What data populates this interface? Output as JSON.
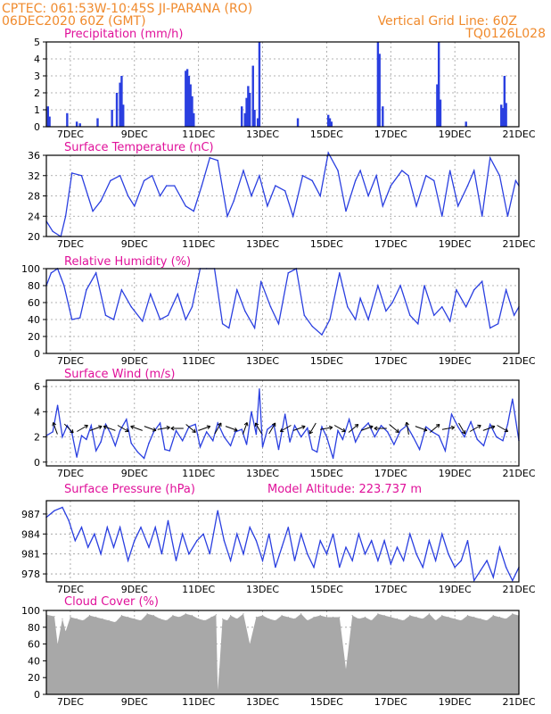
{
  "header": {
    "line1_left": "CPTEC:   061:53W-10:45S   JI-PARANA (RO)",
    "line2_left": "06DEC2020 60Z (GMT)",
    "line1_right": "Vertical Grid Line: 60Z",
    "line2_right": "TQ0126L028"
  },
  "colors": {
    "header": "#f08a2c",
    "panel_title": "#e0119a",
    "series": "#2a3fe0",
    "cloud": "#a8a8a8"
  },
  "x_ticks": [
    "7DEC",
    "9DEC",
    "11DEC",
    "13DEC",
    "15DEC",
    "17DEC",
    "19DEC",
    "21DEC"
  ],
  "chart_data": [
    {
      "type": "bar",
      "title": "Precipitation (mm/h)",
      "ylim": [
        0,
        5
      ],
      "yticks": [
        "0",
        "1",
        "2",
        "3",
        "4",
        "5"
      ],
      "x_range_days": [
        6.25,
        21
      ],
      "x": [
        6.3,
        6.35,
        6.9,
        7.2,
        7.3,
        7.85,
        8.3,
        8.45,
        8.55,
        8.6,
        8.65,
        10.6,
        10.65,
        10.7,
        10.75,
        10.8,
        10.85,
        12.35,
        12.45,
        12.5,
        12.55,
        12.6,
        12.7,
        12.75,
        12.85,
        12.9,
        14.1,
        15.05,
        15.1,
        15.15,
        16.6,
        16.65,
        16.75,
        18.45,
        18.5,
        18.55,
        19.35,
        20.45,
        20.5,
        20.55,
        20.6
      ],
      "values": [
        1.2,
        0.6,
        0.8,
        0.3,
        0.2,
        0.5,
        1.0,
        2.0,
        2.6,
        3.0,
        1.3,
        3.3,
        3.4,
        3.0,
        2.5,
        1.8,
        0.8,
        1.2,
        0.8,
        1.7,
        2.4,
        2.0,
        3.6,
        1.0,
        0.5,
        5.0,
        0.5,
        0.7,
        0.5,
        0.3,
        5.0,
        4.3,
        1.2,
        2.5,
        5.0,
        1.6,
        0.3,
        1.3,
        1.1,
        3.0,
        1.4
      ]
    },
    {
      "type": "line",
      "title": "Surface Temperature (nC)",
      "ylim": [
        20,
        36
      ],
      "yticks": [
        "20",
        "24",
        "28",
        "32",
        "36"
      ],
      "x_range_days": [
        6.25,
        21
      ],
      "x": [
        6.25,
        6.45,
        6.7,
        6.85,
        7.05,
        7.35,
        7.7,
        7.95,
        8.25,
        8.55,
        8.8,
        9.0,
        9.3,
        9.55,
        9.8,
        10.0,
        10.25,
        10.6,
        10.85,
        11.1,
        11.35,
        11.6,
        11.9,
        12.1,
        12.4,
        12.65,
        12.9,
        13.15,
        13.4,
        13.7,
        13.95,
        14.25,
        14.55,
        14.8,
        15.05,
        15.35,
        15.6,
        15.9,
        16.05,
        16.3,
        16.55,
        16.75,
        17.0,
        17.35,
        17.55,
        17.8,
        18.1,
        18.35,
        18.6,
        18.85,
        19.1,
        19.4,
        19.6,
        19.85,
        20.1,
        20.4,
        20.65,
        20.9,
        21.0
      ],
      "values": [
        23,
        21,
        20,
        24,
        32.5,
        32,
        25,
        27,
        31,
        32,
        28,
        26,
        31,
        32,
        28,
        30,
        30,
        26,
        25,
        30,
        35.5,
        35,
        24,
        27,
        33,
        28,
        32,
        26,
        30,
        29,
        24,
        32,
        31,
        28,
        36.5,
        33,
        25,
        31,
        33,
        28,
        32,
        26,
        30,
        33,
        32,
        26,
        32,
        31,
        24,
        33,
        26,
        30,
        33,
        24,
        35.5,
        32,
        24,
        31,
        30
      ]
    },
    {
      "type": "line",
      "title": "Relative Humidity (%)",
      "ylim": [
        0,
        100
      ],
      "yticks": [
        "0",
        "20",
        "40",
        "60",
        "80",
        "100"
      ],
      "x_range_days": [
        6.25,
        21
      ],
      "x": [
        6.25,
        6.4,
        6.6,
        6.8,
        7.05,
        7.3,
        7.5,
        7.8,
        8.1,
        8.35,
        8.6,
        8.9,
        9.25,
        9.5,
        9.8,
        10.05,
        10.35,
        10.6,
        10.8,
        11.05,
        11.25,
        11.5,
        11.75,
        11.95,
        12.2,
        12.45,
        12.75,
        12.95,
        13.25,
        13.5,
        13.8,
        14.05,
        14.3,
        14.55,
        14.85,
        15.1,
        15.4,
        15.65,
        15.9,
        16.05,
        16.3,
        16.6,
        16.85,
        17.05,
        17.3,
        17.6,
        17.85,
        18.05,
        18.35,
        18.6,
        18.85,
        19.05,
        19.35,
        19.6,
        19.85,
        20.1,
        20.35,
        20.6,
        20.85,
        21.0
      ],
      "values": [
        80,
        95,
        100,
        80,
        40,
        42,
        75,
        95,
        45,
        40,
        75,
        55,
        38,
        70,
        40,
        45,
        70,
        40,
        55,
        100,
        100,
        100,
        35,
        30,
        75,
        50,
        30,
        85,
        55,
        35,
        95,
        100,
        45,
        32,
        22,
        40,
        95,
        55,
        40,
        65,
        40,
        80,
        50,
        60,
        80,
        45,
        35,
        80,
        45,
        55,
        38,
        75,
        55,
        75,
        85,
        30,
        35,
        75,
        45,
        55
      ]
    },
    {
      "type": "line",
      "title": "Surface Wind (m/s)",
      "ylim": [
        -0.3,
        6.5
      ],
      "yticks": [
        "0",
        "2",
        "4",
        "6"
      ],
      "x_range_days": [
        6.25,
        21
      ],
      "x": [
        6.25,
        6.45,
        6.6,
        6.75,
        6.9,
        7.05,
        7.2,
        7.35,
        7.5,
        7.65,
        7.8,
        7.95,
        8.1,
        8.25,
        8.4,
        8.55,
        8.75,
        8.9,
        9.1,
        9.3,
        9.45,
        9.6,
        9.8,
        9.95,
        10.1,
        10.3,
        10.5,
        10.7,
        10.9,
        11.05,
        11.25,
        11.45,
        11.6,
        11.8,
        12.0,
        12.15,
        12.35,
        12.5,
        12.65,
        12.8,
        12.9,
        13.0,
        13.15,
        13.35,
        13.5,
        13.7,
        13.85,
        14.0,
        14.2,
        14.4,
        14.55,
        14.7,
        14.85,
        15.0,
        15.2,
        15.35,
        15.5,
        15.7,
        15.9,
        16.1,
        16.3,
        16.5,
        16.7,
        16.9,
        17.1,
        17.3,
        17.5,
        17.7,
        17.9,
        18.1,
        18.3,
        18.5,
        18.7,
        18.9,
        19.1,
        19.3,
        19.5,
        19.7,
        19.9,
        20.1,
        20.3,
        20.5,
        20.65,
        20.8,
        21.0
      ],
      "values": [
        2.1,
        2.4,
        4.5,
        2.0,
        2.9,
        2.3,
        0.4,
        2.1,
        1.8,
        2.9,
        0.9,
        1.6,
        3.0,
        2.3,
        1.3,
        2.5,
        3.4,
        1.5,
        0.8,
        0.3,
        1.5,
        2.4,
        3.1,
        1.0,
        0.9,
        2.5,
        1.7,
        2.8,
        3.0,
        1.2,
        2.4,
        1.7,
        3.1,
        2.0,
        1.3,
        2.4,
        2.6,
        1.4,
        4.0,
        2.2,
        5.8,
        1.2,
        2.6,
        3.0,
        1.0,
        3.8,
        1.6,
        2.9,
        2.0,
        2.7,
        1.0,
        0.8,
        2.8,
        2.0,
        0.3,
        2.5,
        1.8,
        3.4,
        1.6,
        2.6,
        3.1,
        2.0,
        2.9,
        2.4,
        1.4,
        2.5,
        2.9,
        2.0,
        1.0,
        2.8,
        2.4,
        2.1,
        0.9,
        3.8,
        2.8,
        2.0,
        3.2,
        1.8,
        1.3,
        3.0,
        2.0,
        1.7,
        3.0,
        5.0,
        1.7
      ]
    },
    {
      "type": "line",
      "title": "Surface Pressure (hPa)",
      "annotation": "Model Altitude: 223.737 m",
      "ylim": [
        976.8,
        989
      ],
      "yticks": [
        "978",
        "981",
        "984",
        "987"
      ],
      "x_range_days": [
        6.25,
        21
      ],
      "x": [
        6.25,
        6.5,
        6.75,
        6.95,
        7.15,
        7.35,
        7.55,
        7.75,
        7.95,
        8.15,
        8.35,
        8.55,
        8.8,
        9.0,
        9.2,
        9.45,
        9.65,
        9.85,
        10.05,
        10.3,
        10.5,
        10.7,
        10.95,
        11.15,
        11.35,
        11.6,
        11.8,
        12.0,
        12.2,
        12.4,
        12.6,
        12.8,
        13.0,
        13.2,
        13.4,
        13.6,
        13.8,
        14.0,
        14.2,
        14.4,
        14.6,
        14.8,
        15.0,
        15.2,
        15.4,
        15.6,
        15.8,
        16.0,
        16.2,
        16.4,
        16.6,
        16.8,
        17.0,
        17.2,
        17.4,
        17.6,
        17.8,
        18.0,
        18.2,
        18.4,
        18.6,
        18.8,
        19.0,
        19.2,
        19.4,
        19.6,
        19.8,
        20.0,
        20.2,
        20.4,
        20.6,
        20.8,
        21.0
      ],
      "values": [
        986.5,
        987.5,
        988,
        986,
        983,
        985,
        982,
        984,
        981,
        985,
        982,
        985,
        980,
        983,
        985,
        982,
        985,
        981,
        986,
        980,
        984,
        981,
        983,
        984,
        981,
        987.5,
        983,
        980,
        984,
        981,
        985,
        983,
        980,
        984,
        979,
        982,
        985,
        980,
        984,
        981,
        979,
        983,
        981,
        984,
        979,
        982,
        980,
        984,
        981,
        983,
        980,
        983,
        979.5,
        982,
        980,
        984,
        981,
        979,
        983,
        980,
        984,
        981,
        979,
        980,
        983,
        977,
        978.5,
        980,
        977.5,
        982,
        979,
        977,
        979
      ]
    },
    {
      "type": "area",
      "title": "Cloud Cover (%)",
      "ylim": [
        0,
        100
      ],
      "yticks": [
        "0",
        "20",
        "40",
        "60",
        "80",
        "100"
      ],
      "x_range_days": [
        6.25,
        21
      ],
      "x": [
        6.25,
        6.5,
        6.6,
        6.75,
        6.85,
        7.0,
        7.2,
        7.4,
        7.6,
        7.8,
        8.0,
        8.2,
        8.4,
        8.6,
        8.8,
        9.0,
        9.2,
        9.4,
        9.6,
        9.8,
        10.0,
        10.2,
        10.4,
        10.6,
        10.8,
        11.0,
        11.2,
        11.4,
        11.55,
        11.6,
        11.65,
        11.75,
        11.9,
        12.0,
        12.2,
        12.4,
        12.6,
        12.8,
        13.0,
        13.2,
        13.4,
        13.6,
        13.8,
        14.0,
        14.2,
        14.4,
        14.6,
        14.8,
        15.0,
        15.2,
        15.4,
        15.6,
        15.8,
        16.0,
        16.2,
        16.4,
        16.6,
        16.8,
        17.0,
        17.2,
        17.4,
        17.6,
        17.8,
        18.0,
        18.2,
        18.4,
        18.6,
        18.8,
        19.0,
        19.2,
        19.4,
        19.6,
        19.8,
        20.0,
        20.2,
        20.4,
        20.6,
        20.8,
        21.0
      ],
      "values": [
        95,
        93,
        60,
        90,
        75,
        92,
        90,
        88,
        94,
        92,
        90,
        88,
        86,
        94,
        92,
        90,
        88,
        96,
        94,
        90,
        88,
        94,
        92,
        96,
        94,
        90,
        88,
        92,
        95,
        5,
        30,
        90,
        88,
        94,
        90,
        96,
        60,
        92,
        94,
        90,
        88,
        94,
        92,
        90,
        96,
        88,
        92,
        94,
        92,
        92,
        92,
        30,
        94,
        90,
        92,
        88,
        96,
        94,
        92,
        90,
        88,
        94,
        92,
        90,
        96,
        88,
        94,
        92,
        90,
        88,
        94,
        92,
        90,
        88,
        94,
        92,
        90,
        96,
        94
      ]
    }
  ]
}
